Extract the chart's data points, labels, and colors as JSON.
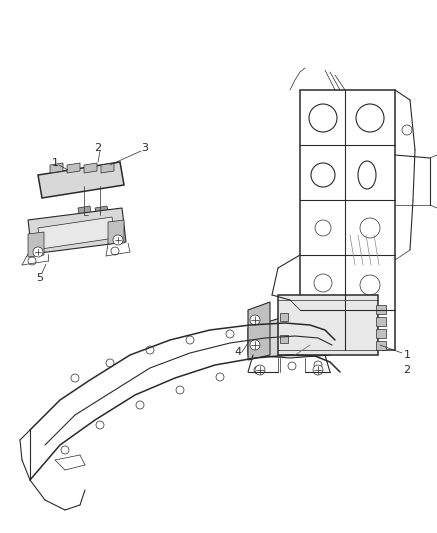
{
  "bg_color": "#ffffff",
  "line_color": "#2a2a2a",
  "label_color": "#000000",
  "fig_width": 4.37,
  "fig_height": 5.33,
  "dpi": 100,
  "lw_thin": 0.5,
  "lw_med": 0.8,
  "lw_thick": 1.1,
  "gray_light": "#d8d8d8",
  "gray_mid": "#c0c0c0",
  "gray_dark": "#a0a0a0"
}
